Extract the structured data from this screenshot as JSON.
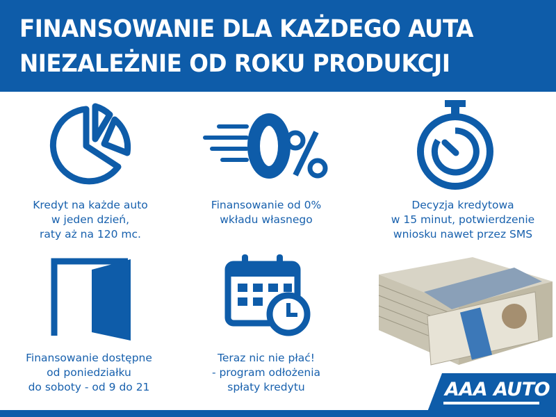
{
  "header": {
    "line1": "FINANSOWANIE DLA KAŻDEGO AUTA",
    "line2": "NIEZALEŻNIE OD ROKU PRODUKCJI"
  },
  "features": [
    {
      "icon": "pie-chart-icon",
      "lines": [
        "Kredyt na każde auto",
        "w jeden dzień,",
        "raty aż na 120 mc."
      ]
    },
    {
      "icon": "zero-percent-icon",
      "lines": [
        "Finansowanie od 0%",
        "wkładu własnego"
      ]
    },
    {
      "icon": "stopwatch-icon",
      "lines": [
        "Decyzja kredytowa",
        "w 15 minut, potwierdzenie",
        "wniosku nawet przez SMS"
      ]
    },
    {
      "icon": "open-door-icon",
      "lines": [
        "Finansowanie dostępne",
        "od poniedziałku",
        "do soboty - od 9 do 21"
      ]
    },
    {
      "icon": "calendar-clock-icon",
      "lines": [
        "Teraz nic nie płać!",
        "- program odłożenia",
        "spłaty kredytu"
      ]
    }
  ],
  "logo": {
    "text": "AAA AUTO"
  },
  "colors": {
    "brand_blue": "#0e5ca9",
    "text_blue": "#1760ad"
  }
}
